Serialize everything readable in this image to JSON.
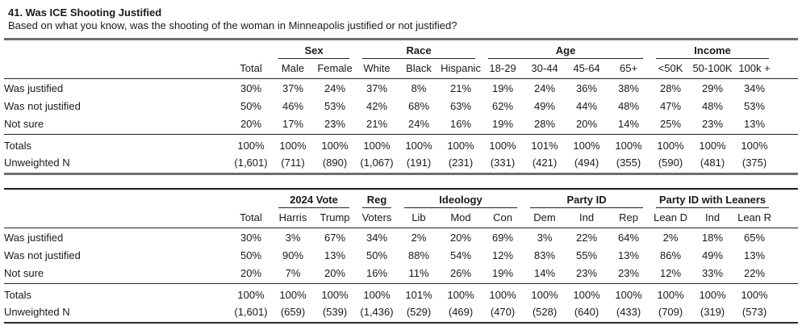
{
  "page": {
    "title": "41. Was ICE Shooting Justified",
    "subtitle": "Based on what you know, was the shooting of the woman in Minneapolis justified or not justified?"
  },
  "tables": [
    {
      "id": "demographics",
      "groups": [
        {
          "label": "",
          "span": 1
        },
        {
          "label": "Sex",
          "span": 2
        },
        {
          "label": "Race",
          "span": 3
        },
        {
          "label": "Age",
          "span": 4
        },
        {
          "label": "Income",
          "span": 3
        }
      ],
      "columns": [
        "Total",
        "Male",
        "Female",
        "White",
        "Black",
        "Hispanic",
        "18-29",
        "30-44",
        "45-64",
        "65+",
        "<50K",
        "50-100K",
        "100k +"
      ],
      "rows": [
        {
          "label": "Was justified",
          "values": [
            "30%",
            "37%",
            "24%",
            "37%",
            "8%",
            "21%",
            "19%",
            "24%",
            "36%",
            "38%",
            "28%",
            "29%",
            "34%"
          ]
        },
        {
          "label": "Was not justified",
          "values": [
            "50%",
            "46%",
            "53%",
            "42%",
            "68%",
            "63%",
            "62%",
            "49%",
            "44%",
            "48%",
            "47%",
            "48%",
            "53%"
          ]
        },
        {
          "label": "Not sure",
          "values": [
            "20%",
            "17%",
            "23%",
            "21%",
            "24%",
            "16%",
            "19%",
            "28%",
            "20%",
            "14%",
            "25%",
            "23%",
            "13%"
          ]
        }
      ],
      "summary": [
        {
          "label": "Totals",
          "values": [
            "100%",
            "100%",
            "100%",
            "100%",
            "100%",
            "100%",
            "100%",
            "101%",
            "100%",
            "100%",
            "100%",
            "100%",
            "100%"
          ]
        },
        {
          "label": "Unweighted N",
          "values": [
            "(1,601)",
            "(711)",
            "(890)",
            "(1,067)",
            "(191)",
            "(231)",
            "(331)",
            "(421)",
            "(494)",
            "(355)",
            "(590)",
            "(481)",
            "(375)"
          ]
        }
      ]
    },
    {
      "id": "politics",
      "groups": [
        {
          "label": "",
          "span": 1
        },
        {
          "label": "2024 Vote",
          "span": 2
        },
        {
          "label": "Reg",
          "span": 1
        },
        {
          "label": "Ideology",
          "span": 3
        },
        {
          "label": "Party ID",
          "span": 3
        },
        {
          "label": "Party ID with Leaners",
          "span": 3
        }
      ],
      "columns": [
        "Total",
        "Harris",
        "Trump",
        "Voters",
        "Lib",
        "Mod",
        "Con",
        "Dem",
        "Ind",
        "Rep",
        "Lean D",
        "Ind",
        "Lean R"
      ],
      "rows": [
        {
          "label": "Was justified",
          "values": [
            "30%",
            "3%",
            "67%",
            "34%",
            "2%",
            "20%",
            "69%",
            "3%",
            "22%",
            "64%",
            "2%",
            "18%",
            "65%"
          ]
        },
        {
          "label": "Was not justified",
          "values": [
            "50%",
            "90%",
            "13%",
            "50%",
            "88%",
            "54%",
            "12%",
            "83%",
            "55%",
            "13%",
            "86%",
            "49%",
            "13%"
          ]
        },
        {
          "label": "Not sure",
          "values": [
            "20%",
            "7%",
            "20%",
            "16%",
            "11%",
            "26%",
            "19%",
            "14%",
            "23%",
            "23%",
            "12%",
            "33%",
            "22%"
          ]
        }
      ],
      "summary": [
        {
          "label": "Totals",
          "values": [
            "100%",
            "100%",
            "100%",
            "100%",
            "101%",
            "100%",
            "100%",
            "100%",
            "100%",
            "100%",
            "100%",
            "100%",
            "100%"
          ]
        },
        {
          "label": "Unweighted N",
          "values": [
            "(1,601)",
            "(659)",
            "(539)",
            "(1,436)",
            "(529)",
            "(469)",
            "(470)",
            "(528)",
            "(640)",
            "(433)",
            "(709)",
            "(319)",
            "(573)"
          ]
        }
      ]
    }
  ],
  "layout_colors": {
    "text": "#1a1a1a",
    "thick_rule": "#6e6e6e",
    "thin_rule": "#222222"
  }
}
